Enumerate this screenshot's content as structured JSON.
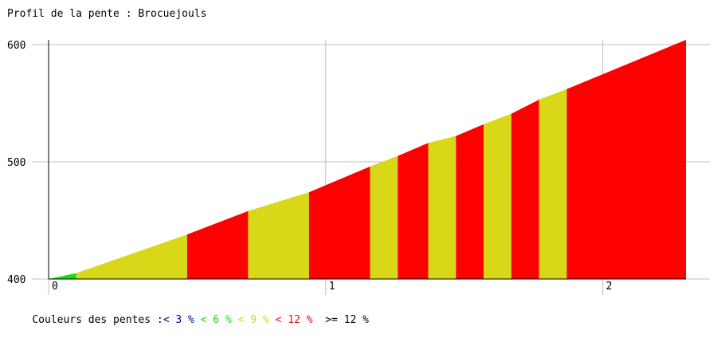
{
  "title": "Profil de la pente : Brocuejouls",
  "legend": {
    "prefix": "Couleurs des pentes :",
    "items": [
      {
        "label": "< 3 %",
        "color": "#0000a0"
      },
      {
        "label": "< 6 %",
        "color": "#10e010"
      },
      {
        "label": "< 9 %",
        "color": "#d8d818"
      },
      {
        "label": "< 12 %",
        "color": "#e81010"
      },
      {
        "label": ">= 12 %",
        "color": "#000000"
      }
    ]
  },
  "chart_data": {
    "type": "area",
    "title": "Profil de la pente : Brocuejouls",
    "x_ticks": [
      0,
      1,
      2
    ],
    "y_ticks": [
      400,
      500,
      600
    ],
    "xlim": [
      0,
      2.3
    ],
    "ylim": [
      400,
      604
    ],
    "grid": true,
    "profile": [
      {
        "x": 0.0,
        "y": 400
      },
      {
        "x": 0.1,
        "y": 405
      },
      {
        "x": 0.5,
        "y": 438
      },
      {
        "x": 0.72,
        "y": 458
      },
      {
        "x": 0.94,
        "y": 474
      },
      {
        "x": 1.16,
        "y": 496
      },
      {
        "x": 1.26,
        "y": 505
      },
      {
        "x": 1.37,
        "y": 516
      },
      {
        "x": 1.47,
        "y": 522
      },
      {
        "x": 1.57,
        "y": 532
      },
      {
        "x": 1.67,
        "y": 541
      },
      {
        "x": 1.77,
        "y": 553
      },
      {
        "x": 1.87,
        "y": 562
      },
      {
        "x": 2.3,
        "y": 604
      }
    ],
    "segment_colors": [
      "#10e010",
      "#d8d818",
      "#ff0000",
      "#d8d818",
      "#ff0000",
      "#d8d818",
      "#ff0000",
      "#d8d818",
      "#ff0000",
      "#d8d818",
      "#ff0000",
      "#d8d818",
      "#ff0000"
    ],
    "grid_color": "#c0c0c0",
    "axis_color": "#000000"
  }
}
